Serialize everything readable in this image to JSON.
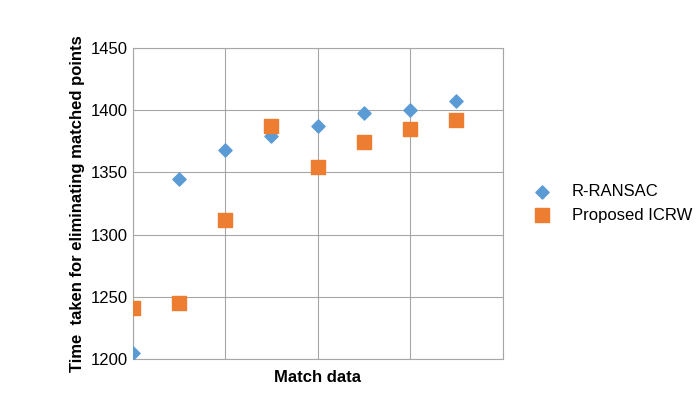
{
  "chart_data": {
    "type": "scatter",
    "x_label": "Match data",
    "y_label": "Time  taken for eliminating matched points",
    "x": [
      1,
      2,
      3,
      4,
      5,
      6,
      7,
      8
    ],
    "series": [
      {
        "name": "R-RANSAC",
        "color": "#5b9bd5",
        "marker": "diamond",
        "values": [
          1205,
          1345,
          1368,
          1379,
          1387,
          1398,
          1400,
          1407
        ]
      },
      {
        "name": "Proposed ICRW",
        "color": "#ed7d31",
        "marker": "square",
        "values": [
          1241,
          1245,
          1312,
          1387,
          1354,
          1374,
          1385,
          1392
        ]
      }
    ],
    "xlim": [
      1,
      9
    ],
    "xticks": [
      1,
      3,
      5,
      7,
      9
    ],
    "ylim": [
      1200,
      1450
    ],
    "yticks": [
      1200,
      1250,
      1300,
      1350,
      1400,
      1450
    ],
    "grid": true,
    "legend": "right",
    "tick_labels": "y"
  }
}
